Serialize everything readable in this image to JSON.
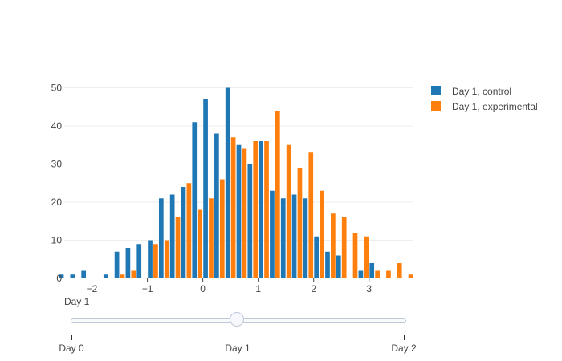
{
  "chart_data": {
    "type": "bar",
    "barmode": "group",
    "grid": true,
    "legend_position": "top-right",
    "x_tick_labels": [
      "−2",
      "−1",
      "0",
      "1",
      "2",
      "3"
    ],
    "x_tick_values": [
      -2,
      -1,
      0,
      1,
      2,
      3
    ],
    "xlim": [
      -2.5,
      3.8
    ],
    "y_tick_labels": [
      "0",
      "10",
      "20",
      "30",
      "40",
      "50"
    ],
    "y_tick_values": [
      0,
      10,
      20,
      30,
      40,
      50
    ],
    "ylim": [
      0,
      52
    ],
    "bin_start": -2.6,
    "bin_width": 0.2,
    "series": [
      {
        "name": "Day 1, control",
        "color": "#1f77b4",
        "values": [
          1,
          1,
          2,
          0,
          1,
          7,
          8,
          9,
          10,
          21,
          22,
          24,
          41,
          47,
          38,
          50,
          35,
          30,
          36,
          23,
          21,
          22,
          21,
          11,
          7,
          6,
          0,
          2,
          4,
          0,
          0,
          0
        ]
      },
      {
        "name": "Day 1, experimental",
        "color": "#ff7f0e",
        "values": [
          0,
          0,
          0,
          0,
          0,
          1,
          2,
          0,
          9,
          10,
          16,
          25,
          18,
          21,
          26,
          37,
          34,
          36,
          36,
          44,
          35,
          29,
          33,
          23,
          17,
          16,
          12,
          11,
          2,
          2,
          4,
          1
        ]
      }
    ]
  },
  "slider": {
    "current_label": "Day 1",
    "steps": [
      "Day 0",
      "Day 1",
      "Day 2"
    ],
    "active_index": 1
  }
}
